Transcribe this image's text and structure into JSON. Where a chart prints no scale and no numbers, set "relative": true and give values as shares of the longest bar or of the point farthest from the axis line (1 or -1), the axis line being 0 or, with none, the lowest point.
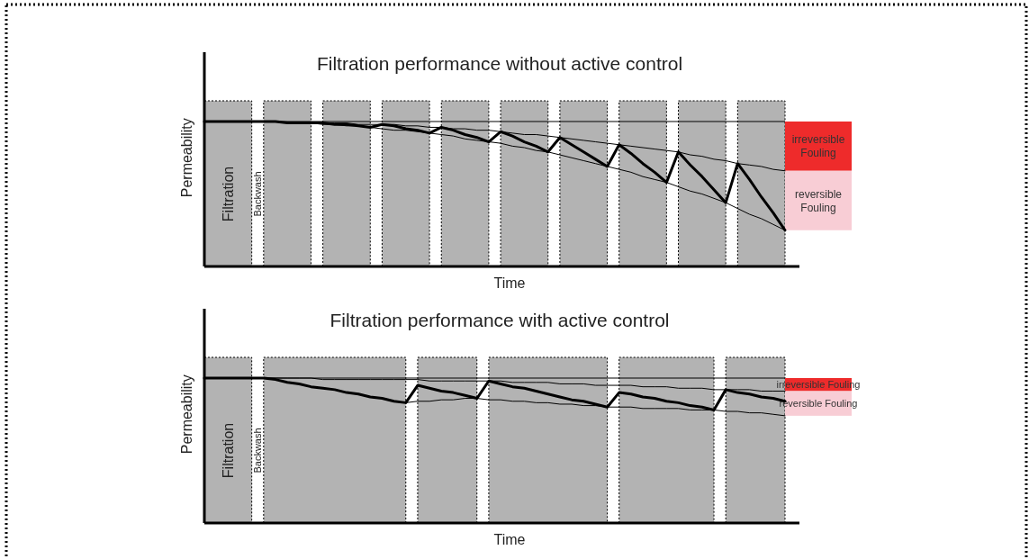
{
  "chart_data": [
    {
      "type": "line",
      "title": "Filtration performance without active control",
      "xlabel": "Time",
      "ylabel": "Permeability",
      "relative": true,
      "marker": "none",
      "line_style": "solid",
      "categories": [
        null,
        null,
        null,
        null,
        null,
        null,
        null,
        null,
        null,
        null,
        null,
        null,
        null,
        null,
        null,
        null,
        null,
        null,
        null,
        null,
        null,
        null,
        null,
        null,
        null,
        null,
        null,
        null,
        null,
        null,
        null,
        null,
        null,
        null,
        null,
        null,
        null,
        null,
        null,
        null,
        null,
        null,
        null,
        null,
        null,
        null,
        null,
        null,
        null,
        null
      ],
      "series": [
        {
          "color": "#000000",
          "values": [
            1.0,
            1.0,
            1.0,
            1.0,
            1.0,
            1.0,
            1.0,
            0.99,
            0.99,
            0.99,
            0.99,
            0.98,
            0.98,
            0.97,
            0.96,
            0.98,
            0.97,
            0.95,
            0.94,
            0.92,
            0.96,
            0.94,
            0.91,
            0.89,
            0.86,
            0.93,
            0.9,
            0.86,
            0.83,
            0.79,
            0.89,
            0.84,
            0.79,
            0.74,
            0.69,
            0.84,
            0.78,
            0.71,
            0.65,
            0.58,
            0.79,
            0.7,
            0.62,
            0.53,
            0.44,
            0.71,
            0.6,
            0.48,
            0.37,
            0.25
          ]
        },
        {
          "color": "#000000",
          "values": [
            null,
            null,
            null,
            null,
            null,
            null,
            null,
            null,
            null,
            null,
            0.99,
            0.99,
            0.99,
            0.98,
            0.98,
            0.98,
            0.98,
            0.97,
            0.97,
            0.96,
            0.96,
            0.95,
            0.95,
            0.94,
            0.94,
            0.93,
            0.92,
            0.91,
            0.91,
            0.9,
            0.89,
            0.88,
            0.87,
            0.86,
            0.85,
            0.84,
            0.83,
            0.82,
            0.81,
            0.8,
            0.79,
            0.77,
            0.76,
            0.74,
            0.73,
            0.71,
            0.7,
            0.69,
            0.67,
            0.66
          ]
        },
        {
          "color": "#000000",
          "values": [
            null,
            null,
            null,
            null,
            null,
            null,
            null,
            null,
            null,
            0.99,
            0.98,
            0.98,
            0.97,
            0.97,
            0.96,
            0.95,
            0.94,
            0.94,
            0.93,
            0.92,
            0.91,
            0.9,
            0.88,
            0.87,
            0.86,
            0.85,
            0.83,
            0.82,
            0.8,
            0.79,
            0.77,
            0.75,
            0.73,
            0.71,
            0.69,
            0.67,
            0.65,
            0.62,
            0.6,
            0.58,
            0.55,
            0.52,
            0.5,
            0.47,
            0.44,
            0.4,
            0.36,
            0.33,
            0.29,
            0.25
          ]
        }
      ],
      "ref_lines": [
        {
          "axis": "y",
          "value": 1
        }
      ],
      "annotations": [
        "Filtration",
        "Backwash",
        "irreversible Fouling",
        "reversible Fouling"
      ]
    },
    {
      "type": "line",
      "title": "Filtration performance with active control",
      "xlabel": "Time",
      "ylabel": "Permeability",
      "relative": true,
      "marker": "none",
      "line_style": "solid",
      "categories": [
        null,
        null,
        null,
        null,
        null,
        null,
        null,
        null,
        null,
        null,
        null,
        null,
        null,
        null,
        null,
        null,
        null,
        null,
        null,
        null,
        null,
        null,
        null,
        null,
        null,
        null,
        null,
        null,
        null,
        null,
        null,
        null,
        null,
        null,
        null,
        null,
        null,
        null,
        null,
        null,
        null,
        null,
        null,
        null,
        null,
        null,
        null,
        null,
        null,
        null
      ],
      "series": [
        {
          "color": "#000000",
          "values": [
            1.0,
            1.0,
            1.0,
            1.0,
            1.0,
            1.0,
            0.99,
            0.97,
            0.96,
            0.94,
            0.93,
            0.92,
            0.9,
            0.89,
            0.87,
            0.86,
            0.84,
            0.83,
            0.95,
            0.93,
            0.91,
            0.9,
            0.88,
            0.86,
            0.98,
            0.96,
            0.94,
            0.93,
            0.91,
            0.89,
            0.87,
            0.85,
            0.84,
            0.82,
            0.8,
            0.9,
            0.89,
            0.87,
            0.86,
            0.84,
            0.83,
            0.81,
            0.8,
            0.78,
            0.92,
            0.9,
            0.89,
            0.87,
            0.86,
            0.84
          ]
        },
        {
          "color": "#000000",
          "values": [
            null,
            null,
            null,
            null,
            null,
            1.0,
            1.0,
            1.0,
            1.0,
            1.0,
            0.99,
            0.99,
            0.99,
            0.99,
            0.99,
            0.99,
            0.99,
            0.99,
            0.99,
            0.98,
            0.98,
            0.98,
            0.98,
            0.98,
            0.98,
            0.98,
            0.97,
            0.97,
            0.97,
            0.97,
            0.96,
            0.96,
            0.96,
            0.95,
            0.95,
            0.95,
            0.95,
            0.94,
            0.94,
            0.94,
            0.93,
            0.93,
            0.93,
            0.92,
            0.92,
            0.92,
            0.92,
            0.91,
            0.91,
            0.91
          ]
        },
        {
          "color": "#000000",
          "values": [
            null,
            null,
            null,
            null,
            null,
            null,
            null,
            null,
            null,
            null,
            null,
            null,
            null,
            null,
            null,
            null,
            null,
            0.83,
            0.84,
            0.84,
            0.85,
            0.85,
            0.86,
            0.86,
            0.85,
            0.85,
            0.84,
            0.84,
            0.83,
            0.83,
            0.82,
            0.82,
            0.81,
            0.81,
            0.8,
            0.8,
            0.8,
            0.79,
            0.79,
            0.79,
            0.79,
            0.78,
            0.78,
            0.78,
            0.77,
            0.77,
            0.76,
            0.76,
            0.75,
            0.74
          ]
        }
      ],
      "ref_lines": [
        {
          "axis": "y",
          "value": 1
        }
      ],
      "annotations": [
        "Filtration",
        "Backwash",
        "irreversible Fouling",
        "reversible Fouling"
      ]
    }
  ]
}
